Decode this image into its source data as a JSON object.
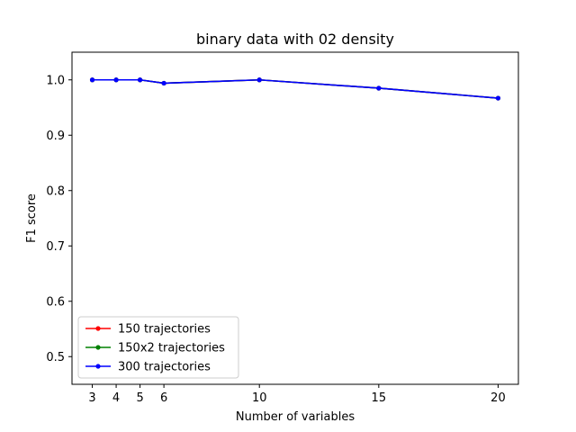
{
  "chart_data": {
    "type": "line",
    "title": "binary data with 02 density",
    "xlabel": "Number of variables",
    "ylabel": "F1 score",
    "x": [
      3,
      4,
      5,
      6,
      10,
      15,
      20
    ],
    "xticks": [
      3,
      4,
      5,
      6,
      10,
      15,
      20
    ],
    "xtick_labels": [
      "3",
      "4",
      "5",
      "6",
      "10",
      "15",
      "20"
    ],
    "xlim": [
      2.15,
      20.85
    ],
    "yticks": [
      0.5,
      0.6,
      0.7,
      0.8,
      0.9,
      1.0
    ],
    "ytick_labels": [
      "0.5",
      "0.6",
      "0.7",
      "0.8",
      "0.9",
      "1.0"
    ],
    "ylim": [
      0.45,
      1.05
    ],
    "grid": false,
    "legend_position": "lower-left",
    "series": [
      {
        "name": "150 trajectories",
        "color": "#ff0000",
        "marker": "dot",
        "values": [
          1.0,
          1.0,
          1.0,
          0.994,
          1.0,
          0.985,
          0.967
        ]
      },
      {
        "name": "150x2 trajectories",
        "color": "#008000",
        "marker": "dot",
        "values": [
          1.0,
          1.0,
          1.0,
          0.994,
          1.0,
          0.985,
          0.967
        ]
      },
      {
        "name": "300 trajectories",
        "color": "#0000ff",
        "marker": "dot",
        "values": [
          1.0,
          1.0,
          1.0,
          0.994,
          1.0,
          0.985,
          0.967
        ]
      }
    ]
  }
}
